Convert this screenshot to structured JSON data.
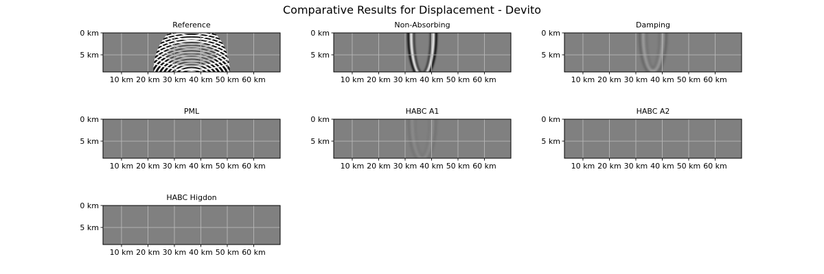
{
  "figure": {
    "title": "Comparative Results for Displacement - Devito"
  },
  "chart_data": {
    "type": "heatmap",
    "title": "Comparative Results for Displacement - Devito",
    "colormap": "gray",
    "background_value": "#808080",
    "grid": true,
    "x_range_km": [
      3,
      70
    ],
    "y_range_km": [
      0,
      8.9
    ],
    "x_ticks": [
      10,
      20,
      30,
      40,
      50,
      60
    ],
    "x_tick_labels": [
      "10 km",
      "20 km",
      "30 km",
      "40 km",
      "50 km",
      "60 km"
    ],
    "y_ticks": [
      0,
      5
    ],
    "y_tick_labels": [
      "0 km",
      "5 km"
    ],
    "panels": [
      {
        "title": "Reference",
        "wavefront": {
          "center_x_km": 36.5,
          "center_y_km": -6,
          "amplitude": "saturated",
          "extent_x_km": [
            22,
            51
          ]
        }
      },
      {
        "title": "Non-Absorbing",
        "wavefront": {
          "center_x_km": 36.5,
          "center_y_km": 0.5,
          "radius_km": 9.5,
          "amplitude": "strong"
        }
      },
      {
        "title": "Damping",
        "wavefront": {
          "center_x_km": 36.5,
          "center_y_km": 0.5,
          "radius_km": 8.5,
          "amplitude": "medium"
        }
      },
      {
        "title": "PML",
        "wavefront": {
          "amplitude": "negligible"
        }
      },
      {
        "title": "HABC A1",
        "wavefront": {
          "center_x_km": 36.5,
          "center_y_km": 0.5,
          "radius_km": 8.8,
          "amplitude": "weak"
        }
      },
      {
        "title": "HABC A2",
        "wavefront": {
          "amplitude": "none"
        }
      },
      {
        "title": "HABC Higdon",
        "wavefront": {
          "amplitude": "none"
        }
      }
    ]
  }
}
